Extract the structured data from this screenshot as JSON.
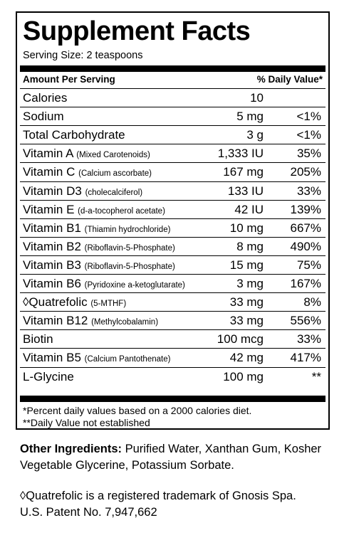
{
  "title": "Supplement Facts",
  "serving_size": "Serving Size: 2 teaspoons",
  "header": {
    "amount": "Amount Per Serving",
    "dv": "% Daily Value*"
  },
  "rows": [
    {
      "name": "Calories",
      "detail": "",
      "amount": "10",
      "dv": ""
    },
    {
      "name": "Sodium",
      "detail": "",
      "amount": "5 mg",
      "dv": "<1%"
    },
    {
      "name": "Total Carbohydrate",
      "detail": "",
      "amount": "3 g",
      "dv": "<1%"
    },
    {
      "name": "Vitamin A (Mixed Carotenoids)",
      "prefix": "Vitamin A ",
      "detail": "(Mixed Carotenoids)",
      "amount": "1,333 IU",
      "dv": "35%"
    },
    {
      "name": "Vitamin C (Calcium ascorbate)",
      "prefix": "Vitamin C ",
      "detail": "(Calcium ascorbate)",
      "amount": "167 mg",
      "dv": "205%"
    },
    {
      "name": "Vitamin D3 (cholecalciferol)",
      "prefix": "Vitamin D3 ",
      "detail": "(cholecalciferol)",
      "amount": "133 IU",
      "dv": "33%"
    },
    {
      "name": "Vitamin E (d-a-tocopherol acetate)",
      "prefix": "Vitamin E ",
      "detail": "(d-a-tocopherol acetate)",
      "amount": "42 IU",
      "dv": "139%"
    },
    {
      "name": "Vitamin B1 (Thiamin hydrochloride)",
      "prefix": "Vitamin B1 ",
      "detail": "(Thiamin hydrochloride)",
      "amount": "10 mg",
      "dv": "667%"
    },
    {
      "name": "Vitamin B2 (Riboflavin-5-Phosphate)",
      "prefix": "Vitamin B2 ",
      "detail": "(Riboflavin-5-Phosphate)",
      "amount": "8 mg",
      "dv": "490%"
    },
    {
      "name": "Vitamin B3 (Riboflavin-5-Phosphate)",
      "prefix": "Vitamin B3 ",
      "detail": "(Riboflavin-5-Phosphate)",
      "amount": "15 mg",
      "dv": "75%"
    },
    {
      "name": "Vitamin B6 (Pyridoxine a-ketoglutarate)",
      "prefix": "Vitamin B6 ",
      "detail": "(Pyridoxine a-ketoglutarate)",
      "amount": "3 mg",
      "dv": "167%"
    },
    {
      "name": "◊Quatrefolic (5-MTHF)",
      "prefix": "◊Quatrefolic ",
      "detail": "(5-MTHF)",
      "amount": "33 mg",
      "dv": "8%"
    },
    {
      "name": "Vitamin B12 (Methylcobalamin)",
      "prefix": "Vitamin B12 ",
      "detail": "(Methylcobalamin)",
      "amount": "33 mg",
      "dv": "556%"
    },
    {
      "name": "Biotin",
      "detail": "",
      "amount": "100 mcg",
      "dv": "33%"
    },
    {
      "name": "Vitamin B5 (Calcium Pantothenate)",
      "prefix": "Vitamin B5 ",
      "detail": "(Calcium Pantothenate)",
      "amount": "42 mg",
      "dv": "417%"
    },
    {
      "name": "L-Glycine",
      "detail": "",
      "amount": "100 mg",
      "dv": "**"
    }
  ],
  "footnotes": {
    "line1": "*Percent daily values based on a 2000 calories diet.",
    "line2": "**Daily Value not established"
  },
  "other_ingredients": {
    "label": "Other Ingredients:",
    "text": "Purified Water,  Xanthan Gum, Kosher Vegetable Glycerine, Potassium Sorbate."
  },
  "trademark": {
    "line1": "◊Quatrefolic is a registered trademark of Gnosis Spa.",
    "line2": "U.S. Patent No. 7,947,662"
  }
}
